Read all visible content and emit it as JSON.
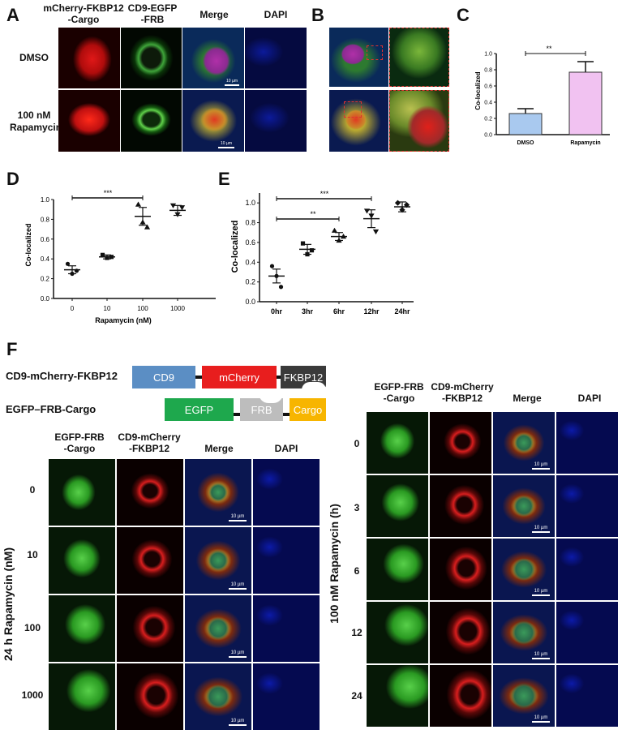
{
  "panel_letters": {
    "A": "A",
    "B": "B",
    "C": "C",
    "D": "D",
    "E": "E",
    "F": "F"
  },
  "panelA": {
    "col_headers": [
      "mCherry-FKBP12\n-Cargo",
      "CD9-EGFP\n-FRB",
      "Merge",
      "DAPI"
    ],
    "rows": [
      "DMSO",
      "100 nM\nRapamycin"
    ],
    "scale": "10 µm"
  },
  "panelC": {
    "sig": "**",
    "chart_data": {
      "type": "bar",
      "categories": [
        "DMSO",
        "Rapamycin"
      ],
      "values": [
        0.26,
        0.77
      ],
      "errors": [
        0.06,
        0.13
      ],
      "ylabel": "Co-localized",
      "ylim": [
        0,
        1.0
      ],
      "yticks": [
        "0.0",
        "0.2",
        "0.4",
        "0.6",
        "0.8",
        "1.0"
      ],
      "colors": [
        "#a9c9ef",
        "#f1c2f1"
      ]
    }
  },
  "panelD": {
    "sig": "***",
    "chart_data": {
      "type": "scatter",
      "categories": [
        "0",
        "10",
        "100",
        "1000"
      ],
      "means": [
        0.29,
        0.42,
        0.83,
        0.89
      ],
      "sem": [
        0.04,
        0.02,
        0.09,
        0.05
      ],
      "points": [
        [
          0.35,
          0.25,
          0.28
        ],
        [
          0.44,
          0.41,
          0.42
        ],
        [
          0.95,
          0.77,
          0.72
        ],
        [
          0.94,
          0.85,
          0.92
        ]
      ],
      "markers": [
        "circle",
        "square",
        "triangle-up",
        "triangle-down"
      ],
      "xlabel": "Rapamycin (nM)",
      "ylabel": "Co-localized",
      "ylim": [
        0,
        1.0
      ],
      "yticks": [
        "0.0",
        "0.2",
        "0.4",
        "0.6",
        "0.8",
        "1.0"
      ]
    }
  },
  "panelE": {
    "sig1": "***",
    "sig2": "**",
    "chart_data": {
      "type": "scatter",
      "categories": [
        "0hr",
        "3hr",
        "6hr",
        "12hr",
        "24hr"
      ],
      "means": [
        0.26,
        0.53,
        0.66,
        0.84,
        0.96
      ],
      "sem": [
        0.07,
        0.05,
        0.04,
        0.09,
        0.05
      ],
      "points": [
        [
          0.36,
          0.26,
          0.15
        ],
        [
          0.59,
          0.48,
          0.52
        ],
        [
          0.72,
          0.62,
          0.66
        ],
        [
          0.92,
          0.87,
          0.71
        ],
        [
          1.0,
          0.93,
          0.98
        ]
      ],
      "markers": [
        "circle",
        "square",
        "triangle-up",
        "triangle-down",
        "diamond"
      ],
      "ylabel": "Co-localized",
      "ylim": [
        0,
        1.1
      ],
      "yticks": [
        "0.0",
        "0.2",
        "0.4",
        "0.6",
        "0.8",
        "1.0"
      ]
    }
  },
  "panelF": {
    "construct1": {
      "name": "CD9-mCherry-FKBP12",
      "parts": [
        "CD9",
        "mCherry",
        "FKBP12"
      ],
      "colors": [
        "#5b8ec4",
        "#e81e1e",
        "#3a3a3a"
      ]
    },
    "construct2": {
      "name": "EGFP–FRB-Cargo",
      "parts": [
        "EGFP",
        "FRB",
        "Cargo"
      ],
      "colors": [
        "#1ea84d",
        "#bdbdbd",
        "#f7b500"
      ]
    },
    "left_headers": [
      "EGFP-FRB\n-Cargo",
      "CD9-mCherry\n-FKBP12",
      "Merge",
      "DAPI"
    ],
    "left_axis": "24 h Rapamycin (nM)",
    "left_rows": [
      "0",
      "10",
      "100",
      "1000"
    ],
    "right_headers": [
      "EGFP-FRB\n-Cargo",
      "CD9-mCherry\n-FKBP12",
      "Merge",
      "DAPI"
    ],
    "right_axis": "100 nM Rapamycin (h)",
    "right_rows": [
      "0",
      "3",
      "6",
      "12",
      "24"
    ],
    "scale": "10 µm"
  }
}
